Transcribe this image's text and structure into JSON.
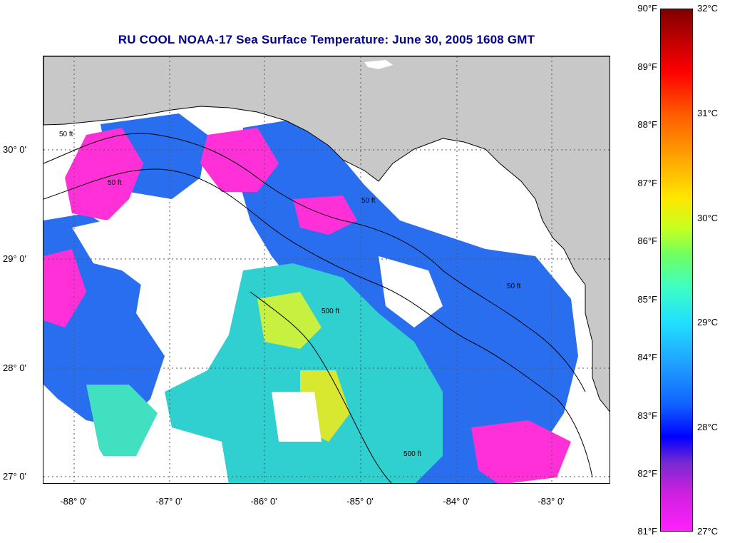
{
  "title": "RU COOL  NOAA-17  Sea Surface Temperature:  June 30, 2005 1608 GMT",
  "latitude_labels": [
    "30° 0'",
    "29° 0'",
    "28° 0'",
    "27° 0'"
  ],
  "longitude_labels": [
    "-88° 0'",
    "-87° 0'",
    "-86° 0'",
    "-85° 0'",
    "-84° 0'",
    "-83° 0'"
  ],
  "colorbar": {
    "fahrenheit_labels": [
      "90°F",
      "89°F",
      "88°F",
      "87°F",
      "86°F",
      "85°F",
      "84°F",
      "83°F",
      "82°F",
      "81°F"
    ],
    "celsius_labels": [
      "32°C",
      "31°C",
      "30°C",
      "29°C",
      "28°C",
      "27°C"
    ]
  },
  "contour_labels": [
    "50 ft",
    "50 ft",
    "50 ft",
    "500 ft",
    "500 ft",
    "50 ft"
  ],
  "colors": {
    "title": "#00008b",
    "land": "#c8c8c8",
    "cloud": "#ffffff",
    "warm": "#e6e61e",
    "mid": "#30d0d0",
    "cool": "#2a6ef0",
    "coolest": "#ff30d8"
  }
}
